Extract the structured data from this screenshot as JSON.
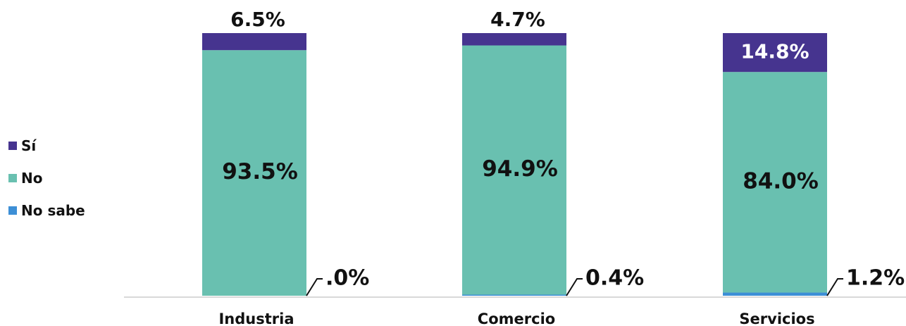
{
  "chart_data": {
    "type": "bar",
    "stacked": true,
    "categories": [
      "Industria",
      "Comercio",
      "Servicios"
    ],
    "series": [
      {
        "name": "No sabe",
        "color": "#3d8fd6",
        "values": [
          0.0,
          0.4,
          1.2
        ],
        "labels": [
          ".0%",
          "0.4%",
          "1.2%"
        ]
      },
      {
        "name": "No",
        "color": "#69c0b0",
        "values": [
          93.5,
          94.9,
          84.0
        ],
        "labels": [
          "93.5%",
          "94.9%",
          "84.0%"
        ]
      },
      {
        "name": "Sí",
        "color": "#46348f",
        "values": [
          6.5,
          4.7,
          14.8
        ],
        "labels": [
          "6.5%",
          "4.7%",
          "14.8%"
        ]
      }
    ],
    "ylim": [
      0,
      100
    ],
    "grid": false,
    "legend_position": "left",
    "legend_order": [
      "Sí",
      "No",
      "No sabe"
    ]
  }
}
